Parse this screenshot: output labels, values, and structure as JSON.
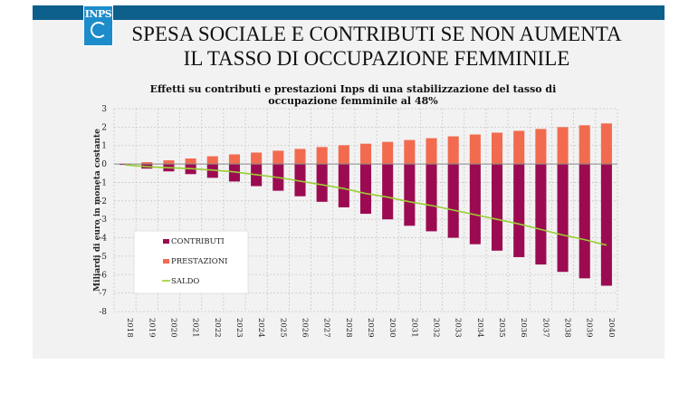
{
  "header": {
    "logo_text": "INPS",
    "title_line1": "SPESA SOCIALE E CONTRIBUTI SE NON AUMENTA",
    "title_line2": "IL TASSO DI OCCUPAZIONE FEMMINILE"
  },
  "colors": {
    "contributi": "#9c0b52",
    "prestazioni": "#f26b4f",
    "saldo": "#9acd32",
    "topbar": "#0d5f8c",
    "logo": "#1d8ccb"
  },
  "chart_data": {
    "type": "bar",
    "title_line1": "Effetti su contributi e prestazioni Inps di una stabilizzazione del tasso di",
    "title_line2": "occupazione femminile al 48%",
    "xlabel": "",
    "ylabel": "Miliardi di euro in moneta costante",
    "ylim": [
      -8,
      3
    ],
    "yticks": [
      3,
      2,
      1,
      0,
      -1,
      -2,
      -3,
      -4,
      -5,
      -6,
      -7,
      -8
    ],
    "ytick_labels": [
      "3",
      "2",
      "1",
      "0",
      "-1",
      "-2",
      "-3",
      "-4",
      "-5",
      "-6",
      "-7",
      "-8"
    ],
    "categories": [
      "2018",
      "2019",
      "2020",
      "2021",
      "2022",
      "2023",
      "2024",
      "2025",
      "2026",
      "2027",
      "2028",
      "2029",
      "2030",
      "2031",
      "2032",
      "2033",
      "2034",
      "2035",
      "2036",
      "2037",
      "2038",
      "2039",
      "2040"
    ],
    "series": [
      {
        "name": "CONTRIBUTI",
        "kind": "bar",
        "values": [
          -0.05,
          -0.25,
          -0.4,
          -0.55,
          -0.75,
          -0.95,
          -1.2,
          -1.45,
          -1.75,
          -2.05,
          -2.35,
          -2.7,
          -3.0,
          -3.35,
          -3.65,
          -4.0,
          -4.35,
          -4.7,
          -5.05,
          -5.45,
          -5.85,
          -6.2,
          -6.6
        ]
      },
      {
        "name": "PRESTAZIONI",
        "kind": "bar",
        "values": [
          0.02,
          0.1,
          0.2,
          0.3,
          0.42,
          0.52,
          0.62,
          0.72,
          0.82,
          0.92,
          1.02,
          1.1,
          1.2,
          1.3,
          1.4,
          1.5,
          1.6,
          1.7,
          1.8,
          1.9,
          2.0,
          2.1,
          2.2
        ]
      },
      {
        "name": "SALDO",
        "kind": "line",
        "values": [
          -0.05,
          -0.15,
          -0.2,
          -0.25,
          -0.33,
          -0.43,
          -0.58,
          -0.73,
          -0.93,
          -1.13,
          -1.33,
          -1.6,
          -1.8,
          -2.05,
          -2.25,
          -2.5,
          -2.75,
          -3.0,
          -3.25,
          -3.55,
          -3.85,
          -4.1,
          -4.4
        ]
      }
    ],
    "legend_position": "bottom-left"
  }
}
